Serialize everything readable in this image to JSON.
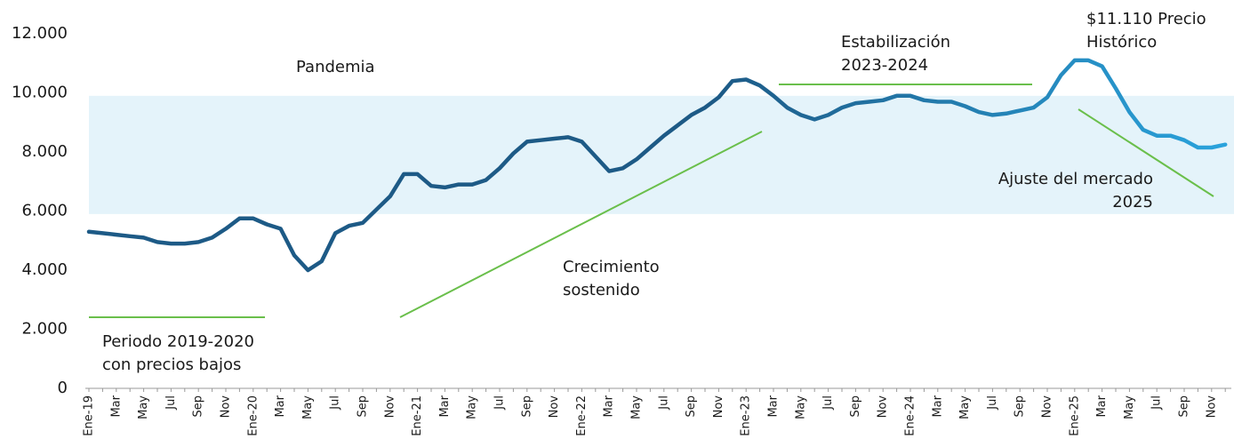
{
  "chart_data": {
    "type": "line",
    "categories": [
      "Ene-19",
      null,
      "Mar",
      null,
      "May",
      null,
      "Jul",
      null,
      "Sep",
      null,
      "Nov",
      null,
      "Ene-20",
      null,
      "Mar",
      null,
      "May",
      null,
      "Jul",
      null,
      "Sep",
      null,
      "Nov",
      null,
      "Ene-21",
      null,
      "Mar",
      null,
      "May",
      null,
      "Jul",
      null,
      "Sep",
      null,
      "Nov",
      null,
      "Ene-22",
      null,
      "Mar",
      null,
      "May",
      null,
      "Jul",
      null,
      "Sep",
      null,
      "Nov",
      null,
      "Ene-23",
      null,
      "Mar",
      null,
      "May",
      null,
      "Jul",
      null,
      "Sep",
      null,
      "Nov",
      null,
      "Ene-24",
      null,
      "Mar",
      null,
      "May",
      null,
      "Jul",
      null,
      "Sep",
      null,
      "Nov",
      null,
      "Ene-25",
      null,
      "Mar",
      null,
      "May",
      null,
      "Jul",
      null,
      "Sep",
      null,
      "Nov",
      null
    ],
    "series": [
      {
        "color": "#1d5a86",
        "color_end": "#2aa3dc",
        "values": [
          5300,
          5250,
          5200,
          5150,
          5100,
          4950,
          4900,
          4900,
          4950,
          5100,
          5400,
          5750,
          5750,
          5550,
          5400,
          4500,
          4000,
          4300,
          5250,
          5500,
          5600,
          6050,
          6500,
          7250,
          7250,
          6850,
          6800,
          6900,
          6900,
          7050,
          7450,
          7950,
          8350,
          8400,
          8450,
          8500,
          8350,
          7850,
          7350,
          7450,
          7750,
          8150,
          8550,
          8900,
          9250,
          9500,
          9850,
          10400,
          10450,
          10250,
          9900,
          9500,
          9250,
          9100,
          9250,
          9500,
          9650,
          9700,
          9750,
          9900,
          9900,
          9750,
          9700,
          9700,
          9550,
          9350,
          9250,
          9300,
          9400,
          9500,
          9850,
          10600,
          11100,
          11100,
          10900,
          10150,
          9350,
          8750,
          8550,
          8550,
          8400,
          8150,
          8150,
          8250
        ]
      }
    ],
    "ylim": [
      0,
      12000
    ],
    "yticks": [
      0,
      {
        "value": 2000,
        "label": "2.000"
      },
      {
        "value": 4000,
        "label": "4.000"
      },
      {
        "value": 6000,
        "label": "6.000"
      },
      {
        "value": 8000,
        "label": "8.000"
      },
      {
        "value": 10000,
        "label": "10.000"
      },
      {
        "value": 12000,
        "label": "12.000"
      }
    ],
    "grid": false,
    "highlight_band": {
      "range": [
        5900,
        9900
      ],
      "color": "#e4f3fa"
    },
    "annotations": [
      {
        "lines": [
          "Pandemia"
        ]
      },
      {
        "lines": [
          "Periodo 2019-2020",
          "con precios bajos"
        ]
      },
      {
        "lines": [
          "Crecimiento",
          "sostenido"
        ]
      },
      {
        "lines": [
          "Estabilización",
          "2023-2024"
        ]
      },
      {
        "lines": [
          "$11.110 Precio",
          "Histórico"
        ]
      },
      {
        "lines": [
          "Ajuste del mercado",
          "2025"
        ]
      }
    ]
  }
}
